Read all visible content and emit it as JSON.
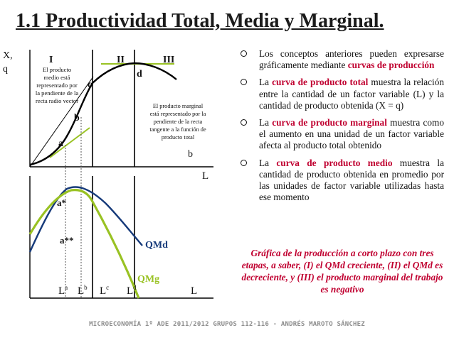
{
  "title": "1.1 Productividad Total, Media y Marginal.",
  "graph": {
    "top": {
      "y_axis_label_1": "X,",
      "y_axis_label_2": "q",
      "x_axis_label": "L",
      "stage_labels": [
        "I",
        "II",
        "III"
      ],
      "point_labels": {
        "a": "a",
        "b": "b",
        "c": "c",
        "d": "d"
      },
      "b_on_axis": "b",
      "note_left": [
        "El producto",
        "medio está",
        "representado por",
        "la pendiente de la",
        "recta radio vector"
      ],
      "note_right": [
        "El producto marginal",
        "está representado por la",
        "pendiente de la recta",
        "tangente a la función de",
        "producto total"
      ]
    },
    "bottom": {
      "point_labels": {
        "a_star": "a*",
        "a_double_star": "a**"
      },
      "qmd_label": "QMd",
      "qmg_label": "QMg",
      "x_axis_label": "L",
      "x_ticks": [
        {
          "base": "L",
          "sup": "a"
        },
        {
          "base": "L",
          "sup": "b"
        },
        {
          "base": "L",
          "sup": "c"
        },
        {
          "base": "L",
          "sup": "d"
        }
      ]
    },
    "colors": {
      "total_product": "#000000",
      "qmd": "#163a7a",
      "qmg": "#99c223",
      "tangent": "#99c223",
      "qmd_label": "#163a7a",
      "qmg_label": "#99c223"
    }
  },
  "bullets": [
    {
      "parts": [
        {
          "text": "Los conceptos anteriores pueden expresarse gráficamente mediante "
        },
        {
          "text": "curvas de producción",
          "hl": true
        }
      ]
    },
    {
      "parts": [
        {
          "text": "La "
        },
        {
          "text": "curva de producto total",
          "hl": true
        },
        {
          "text": " muestra la relación entre la cantidad de un factor variable (L) y la cantidad de producto obtenida (X = q)"
        }
      ]
    },
    {
      "parts": [
        {
          "text": "La "
        },
        {
          "text": "curva de producto marginal",
          "hl": true
        },
        {
          "text": " muestra como el aumento en una unidad de un factor variable afecta al producto total obtenido"
        }
      ]
    },
    {
      "parts": [
        {
          "text": "La "
        },
        {
          "text": "curva de producto medio",
          "hl": true
        },
        {
          "text": " muestra la cantidad de producto obtenida en promedio por las unidades de factor variable utilizadas hasta ese momento"
        }
      ]
    }
  ],
  "caption": "Gráfica de la producción a corto plazo con tres etapas, a saber, (I) el QMd creciente, (II) el QMd es decreciente, y (III) el producto marginal del trabajo es negativo",
  "footer": "MICROECONOMÍA 1º ADE 2011/2012 GRUPOS 112-116 - ANDRÉS MAROTO SÁNCHEZ"
}
